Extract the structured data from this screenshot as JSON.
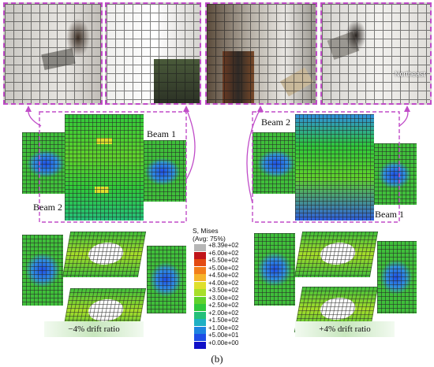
{
  "photos": [
    {
      "id": "photo-1",
      "label": ""
    },
    {
      "id": "photo-2",
      "label": ""
    },
    {
      "id": "photo-3",
      "label": ""
    },
    {
      "id": "photo-4",
      "label": "Northeast"
    }
  ],
  "left_model": {
    "beam_top_label": "Beam 1",
    "beam_bottom_label": "Beam 2",
    "drift_label": "−4% drift ratio"
  },
  "right_model": {
    "beam_top_label": "Beam 2",
    "beam_bottom_label": "Beam 1",
    "drift_label": "+4% drift ratio"
  },
  "legend": {
    "title_1": "S, Mises",
    "title_2": "(Avg: 75%)",
    "entries": [
      {
        "value": "+8.39e+02",
        "color": "#b6b6b6"
      },
      {
        "value": "+6.00e+02",
        "color": "#c0141a"
      },
      {
        "value": "+5.50e+02",
        "color": "#e34a12"
      },
      {
        "value": "+5.00e+02",
        "color": "#f27e1a"
      },
      {
        "value": "+4.50e+02",
        "color": "#f6b42a"
      },
      {
        "value": "+4.00e+02",
        "color": "#dfe02c"
      },
      {
        "value": "+3.50e+02",
        "color": "#a8df2a"
      },
      {
        "value": "+3.00e+02",
        "color": "#5fd22c"
      },
      {
        "value": "+2.50e+02",
        "color": "#2fc83a"
      },
      {
        "value": "+2.00e+02",
        "color": "#24c07a"
      },
      {
        "value": "+1.50e+02",
        "color": "#1fb0c4"
      },
      {
        "value": "+1.00e+02",
        "color": "#1e84e0"
      },
      {
        "value": "+5.00e+01",
        "color": "#1e4ee6"
      },
      {
        "value": "+0.00e+00",
        "color": "#1010c8"
      }
    ]
  },
  "caption": "(b)",
  "colors": {
    "accent": "#c04cc8",
    "beam_green": "#3fbf3a",
    "blue": "#2f5fe0"
  }
}
